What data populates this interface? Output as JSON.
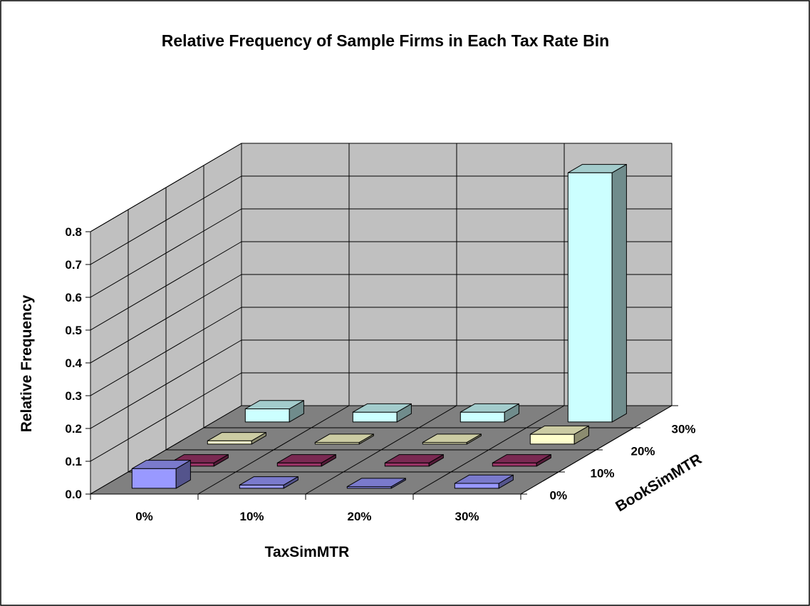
{
  "chart_data": {
    "type": "bar",
    "subtype": "3d-column",
    "title": "Relative Frequency of Sample Firms in Each Tax Rate Bin",
    "xlabel": "TaxSimMTR",
    "ylabel": "Relative Frequency",
    "zlabel": "BookSimMTR",
    "categories": [
      "0%",
      "10%",
      "20%",
      "30%"
    ],
    "depth_categories": [
      "0%",
      "10%",
      "20%",
      "30%"
    ],
    "y_ticks": [
      "0.0",
      "0.1",
      "0.2",
      "0.3",
      "0.4",
      "0.5",
      "0.6",
      "0.7",
      "0.8"
    ],
    "ylim": [
      0,
      0.8
    ],
    "grid": true,
    "legend": "none",
    "series": [
      {
        "depth": "0%",
        "color": "#9999ff",
        "values": [
          0.06,
          0.01,
          0.005,
          0.015
        ]
      },
      {
        "depth": "10%",
        "color": "#993366",
        "values": [
          0.01,
          0.01,
          0.01,
          0.01
        ]
      },
      {
        "depth": "20%",
        "color": "#ffffcc",
        "values": [
          0.01,
          0.005,
          0.005,
          0.03
        ]
      },
      {
        "depth": "30%",
        "color": "#ccffff",
        "values": [
          0.04,
          0.03,
          0.03,
          0.76
        ]
      }
    ],
    "colors": {
      "wall": "#c0c0c0",
      "floor": "#808080",
      "grid": "#000000"
    }
  }
}
